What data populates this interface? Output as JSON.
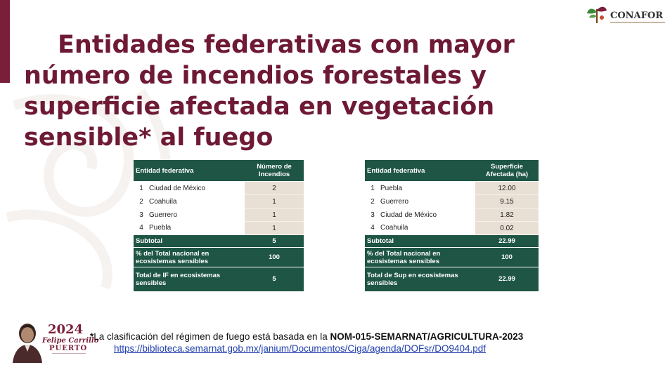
{
  "title": "Entidades federativas con mayor número de incendios forestales y superficie afectada en vegetación sensible* al fuego",
  "logo": {
    "text": "CONAFOR"
  },
  "badge": {
    "year": "2024",
    "name": "Felipe Carrillo",
    "place": "PUERTO"
  },
  "table_incendios": {
    "header": {
      "entity": "Entidad federativa",
      "value": "Número de Incendios"
    },
    "rows": [
      {
        "rank": "1",
        "entity": "Ciudad de México",
        "value": "2"
      },
      {
        "rank": "2",
        "entity": "Coahuila",
        "value": "1"
      },
      {
        "rank": "3",
        "entity": "Guerrero",
        "value": "1"
      },
      {
        "rank": "4",
        "entity": "Puebla",
        "value": "1"
      }
    ],
    "subtotal": {
      "label": "Subtotal",
      "value": "5"
    },
    "pct": {
      "label": "% del Total nacional en ecosistemas sensibles",
      "value": "100"
    },
    "total": {
      "label": "Total de IF en ecosistemas sensibles",
      "value": "5"
    }
  },
  "table_superficie": {
    "header": {
      "entity": "Entidad federativa",
      "value": "Superficie Afectada (ha)"
    },
    "rows": [
      {
        "rank": "1",
        "entity": "Puebla",
        "value": "12.00"
      },
      {
        "rank": "2",
        "entity": "Guerrero",
        "value": "9.15"
      },
      {
        "rank": "3",
        "entity": "Ciudad de México",
        "value": "1.82"
      },
      {
        "rank": "4",
        "entity": "Coahuila",
        "value": "0.02"
      }
    ],
    "subtotal": {
      "label": "Subtotal",
      "value": "22.99"
    },
    "pct": {
      "label": "% del Total nacional en ecosistemas sensibles",
      "value": "100"
    },
    "total": {
      "label": "Total de Sup en ecosistemas sensibles",
      "value": "22.99"
    }
  },
  "footnote": {
    "asterisk": "*",
    "text": "La clasificación del régimen de fuego está basada en la ",
    "norm": "NOM-015-SEMARNAT/AGRICULTURA-2023",
    "link": "https://biblioteca.semarnat.gob.mx/janium/Documentos/Ciga/agenda/DOFsr/DO9404.pdf"
  },
  "colors": {
    "title": "#6e1a35",
    "table_header": "#1e5544",
    "value_cell": "#e9e0d5",
    "link": "#1f3fae"
  }
}
